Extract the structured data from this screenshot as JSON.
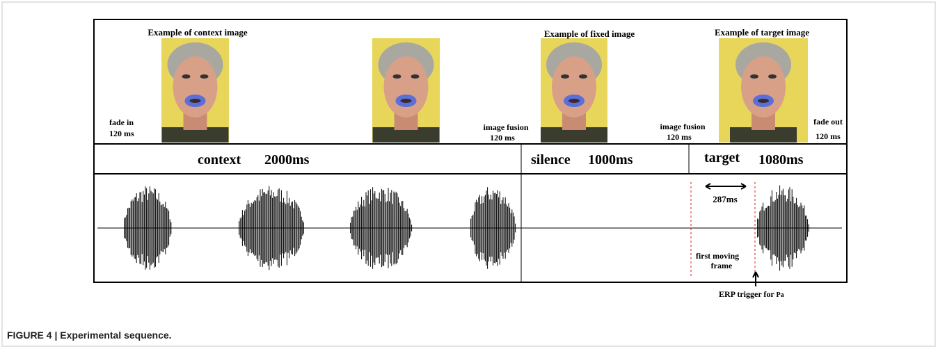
{
  "figure": {
    "image_titles": {
      "context": "Example of context image",
      "fixed": "Example of fixed image",
      "target": "Example of target image"
    },
    "transitions": {
      "fade_in": [
        "fade in",
        "120 ms"
      ],
      "fusion_1": [
        "image fusion",
        "120 ms"
      ],
      "fusion_2": [
        "image fusion",
        "120 ms"
      ],
      "fade_out": [
        "fade out",
        "120 ms"
      ]
    },
    "segments": [
      {
        "name": "context",
        "duration": "2000ms"
      },
      {
        "name": "silence",
        "duration": "1000ms"
      },
      {
        "name": "target",
        "duration": "1080ms"
      }
    ],
    "interval": "287ms",
    "onset_label": [
      "first moving",
      "frame"
    ],
    "trigger": {
      "text": "ERP trigger for",
      "sub": "Pa"
    }
  },
  "caption": "FIGURE 4 | Experimental sequence."
}
